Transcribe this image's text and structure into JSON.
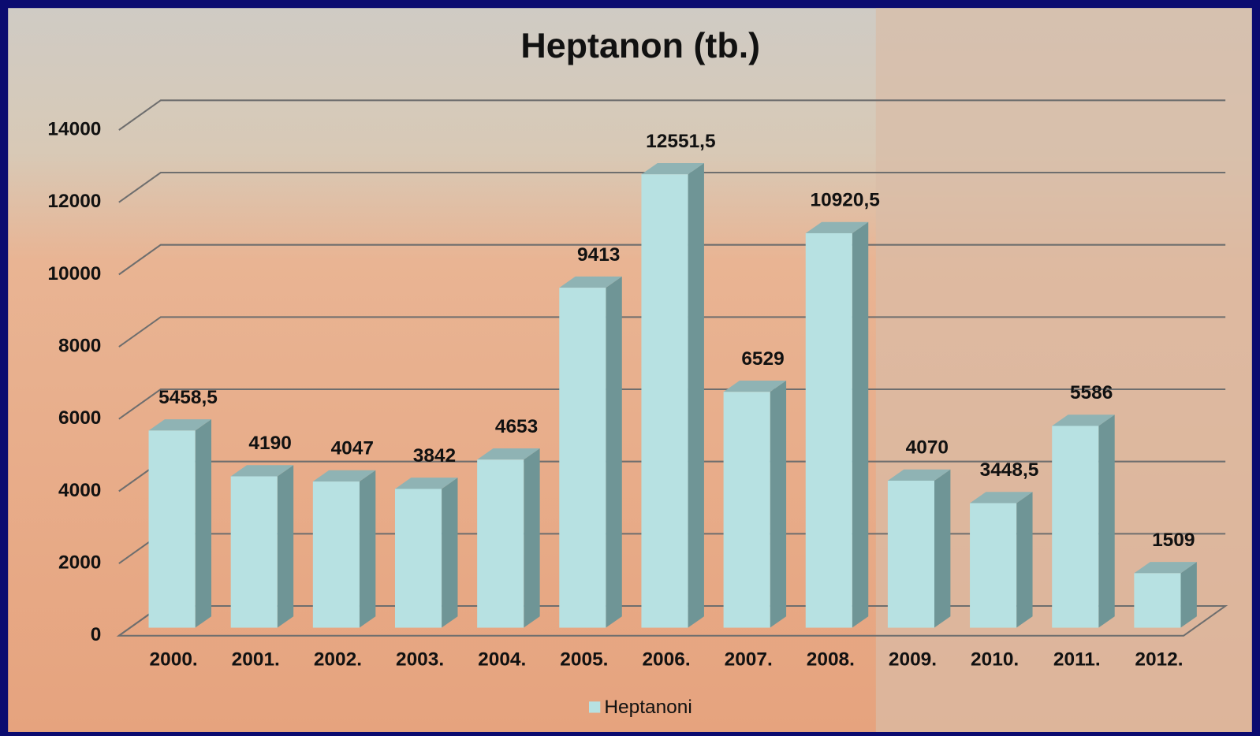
{
  "chart_data": {
    "type": "bar3d",
    "title": "Heptanon (tb.)",
    "categories": [
      "2000.",
      "2001.",
      "2002.",
      "2003.",
      "2004.",
      "2005.",
      "2006.",
      "2007.",
      "2008.",
      "2009.",
      "2010.",
      "2011.",
      "2012."
    ],
    "series": [
      {
        "name": "Heptanoni",
        "color": "#b7e1e2",
        "values": [
          5458.5,
          4190,
          4047,
          3842,
          4653,
          9413,
          12551.5,
          6529,
          10920.5,
          4070,
          3448.5,
          5586,
          1509
        ],
        "value_labels": [
          "5458,5",
          "4190",
          "4047",
          "3842",
          "4653",
          "9413",
          "12551,5",
          "6529",
          "10920,5",
          "4070",
          "3448,5",
          "5586",
          "1509"
        ]
      }
    ],
    "ylim": [
      0,
      14000
    ],
    "yticks": [
      0,
      2000,
      4000,
      6000,
      8000,
      10000,
      12000,
      14000
    ],
    "grid": true,
    "legend": "bottom"
  }
}
